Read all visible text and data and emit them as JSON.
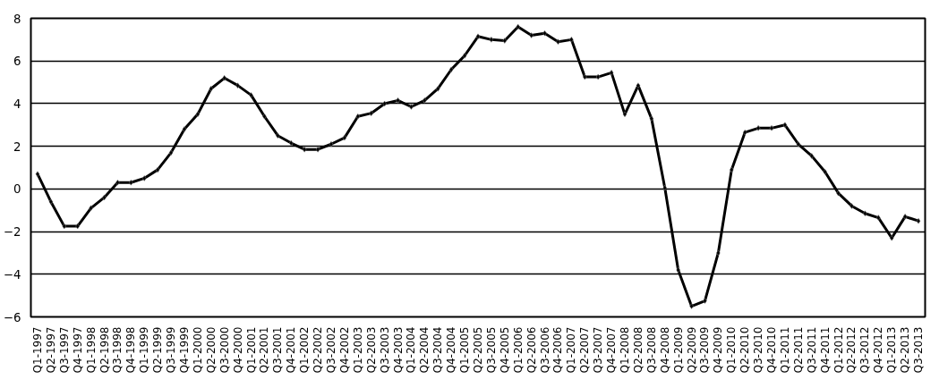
{
  "chart_data": {
    "type": "line",
    "categories": [
      "Q1-1997",
      "Q2-1997",
      "Q3-1997",
      "Q4-1997",
      "Q1-1998",
      "Q2-1998",
      "Q3-1998",
      "Q4-1998",
      "Q1-1999",
      "Q2-1999",
      "Q3-1999",
      "Q4-1999",
      "Q1-2000",
      "Q2-2000",
      "Q3-2000",
      "Q4-2000",
      "Q1-2001",
      "Q2-2001",
      "Q3-2001",
      "Q4-2001",
      "Q1-2002",
      "Q2-2002",
      "Q3-2002",
      "Q4-2002",
      "Q1-2003",
      "Q2-2003",
      "Q3-2003",
      "Q4-2003",
      "Q1-2004",
      "Q2-2004",
      "Q3-2004",
      "Q4-2004",
      "Q1-2005",
      "Q2-2005",
      "Q3-2005",
      "Q4-2005",
      "Q1-2006",
      "Q2-2006",
      "Q3-2006",
      "Q4-2006",
      "Q1-2007",
      "Q2-2007",
      "Q3-2007",
      "Q4-2007",
      "Q1-2008",
      "Q2-2008",
      "Q3-2008",
      "Q4-2008",
      "Q1-2009",
      "Q2-2009",
      "Q3-2009",
      "Q4-2009",
      "Q1-2010",
      "Q2-2010",
      "Q3-2010",
      "Q4-2010",
      "Q1-2011",
      "Q2-2011",
      "Q3-2011",
      "Q4-2011",
      "Q1-2012",
      "Q2-2012",
      "Q3-2012",
      "Q4-2012",
      "Q1-2013",
      "Q2-2013",
      "Q3-2013"
    ],
    "series": [
      {
        "color": "#000000",
        "values": [
          0.7,
          -0.6,
          -1.75,
          -1.75,
          -0.9,
          -0.4,
          0.3,
          0.3,
          0.5,
          0.9,
          1.7,
          2.8,
          3.5,
          4.7,
          5.2,
          4.85,
          4.4,
          3.4,
          2.5,
          2.15,
          1.85,
          1.85,
          2.1,
          2.4,
          3.4,
          3.55,
          4.0,
          4.15,
          3.85,
          4.15,
          4.7,
          5.6,
          6.25,
          7.15,
          7.0,
          6.95,
          7.6,
          7.2,
          7.3,
          6.9,
          7.0,
          5.25,
          5.25,
          5.45,
          3.5,
          4.85,
          3.3,
          0.05,
          -3.8,
          -5.5,
          -5.25,
          -3.0,
          0.9,
          2.65,
          2.85,
          2.85,
          3.0,
          2.1,
          1.55,
          0.8,
          -0.2,
          -0.8,
          -1.15,
          -1.35,
          -2.3,
          -1.3,
          -1.5
        ]
      }
    ],
    "ylim": [
      -6,
      8
    ],
    "yticks": [
      -6,
      -4,
      -2,
      0,
      2,
      4,
      6,
      8
    ],
    "grid": "y",
    "marker": "diamond",
    "line_style": "solid"
  }
}
